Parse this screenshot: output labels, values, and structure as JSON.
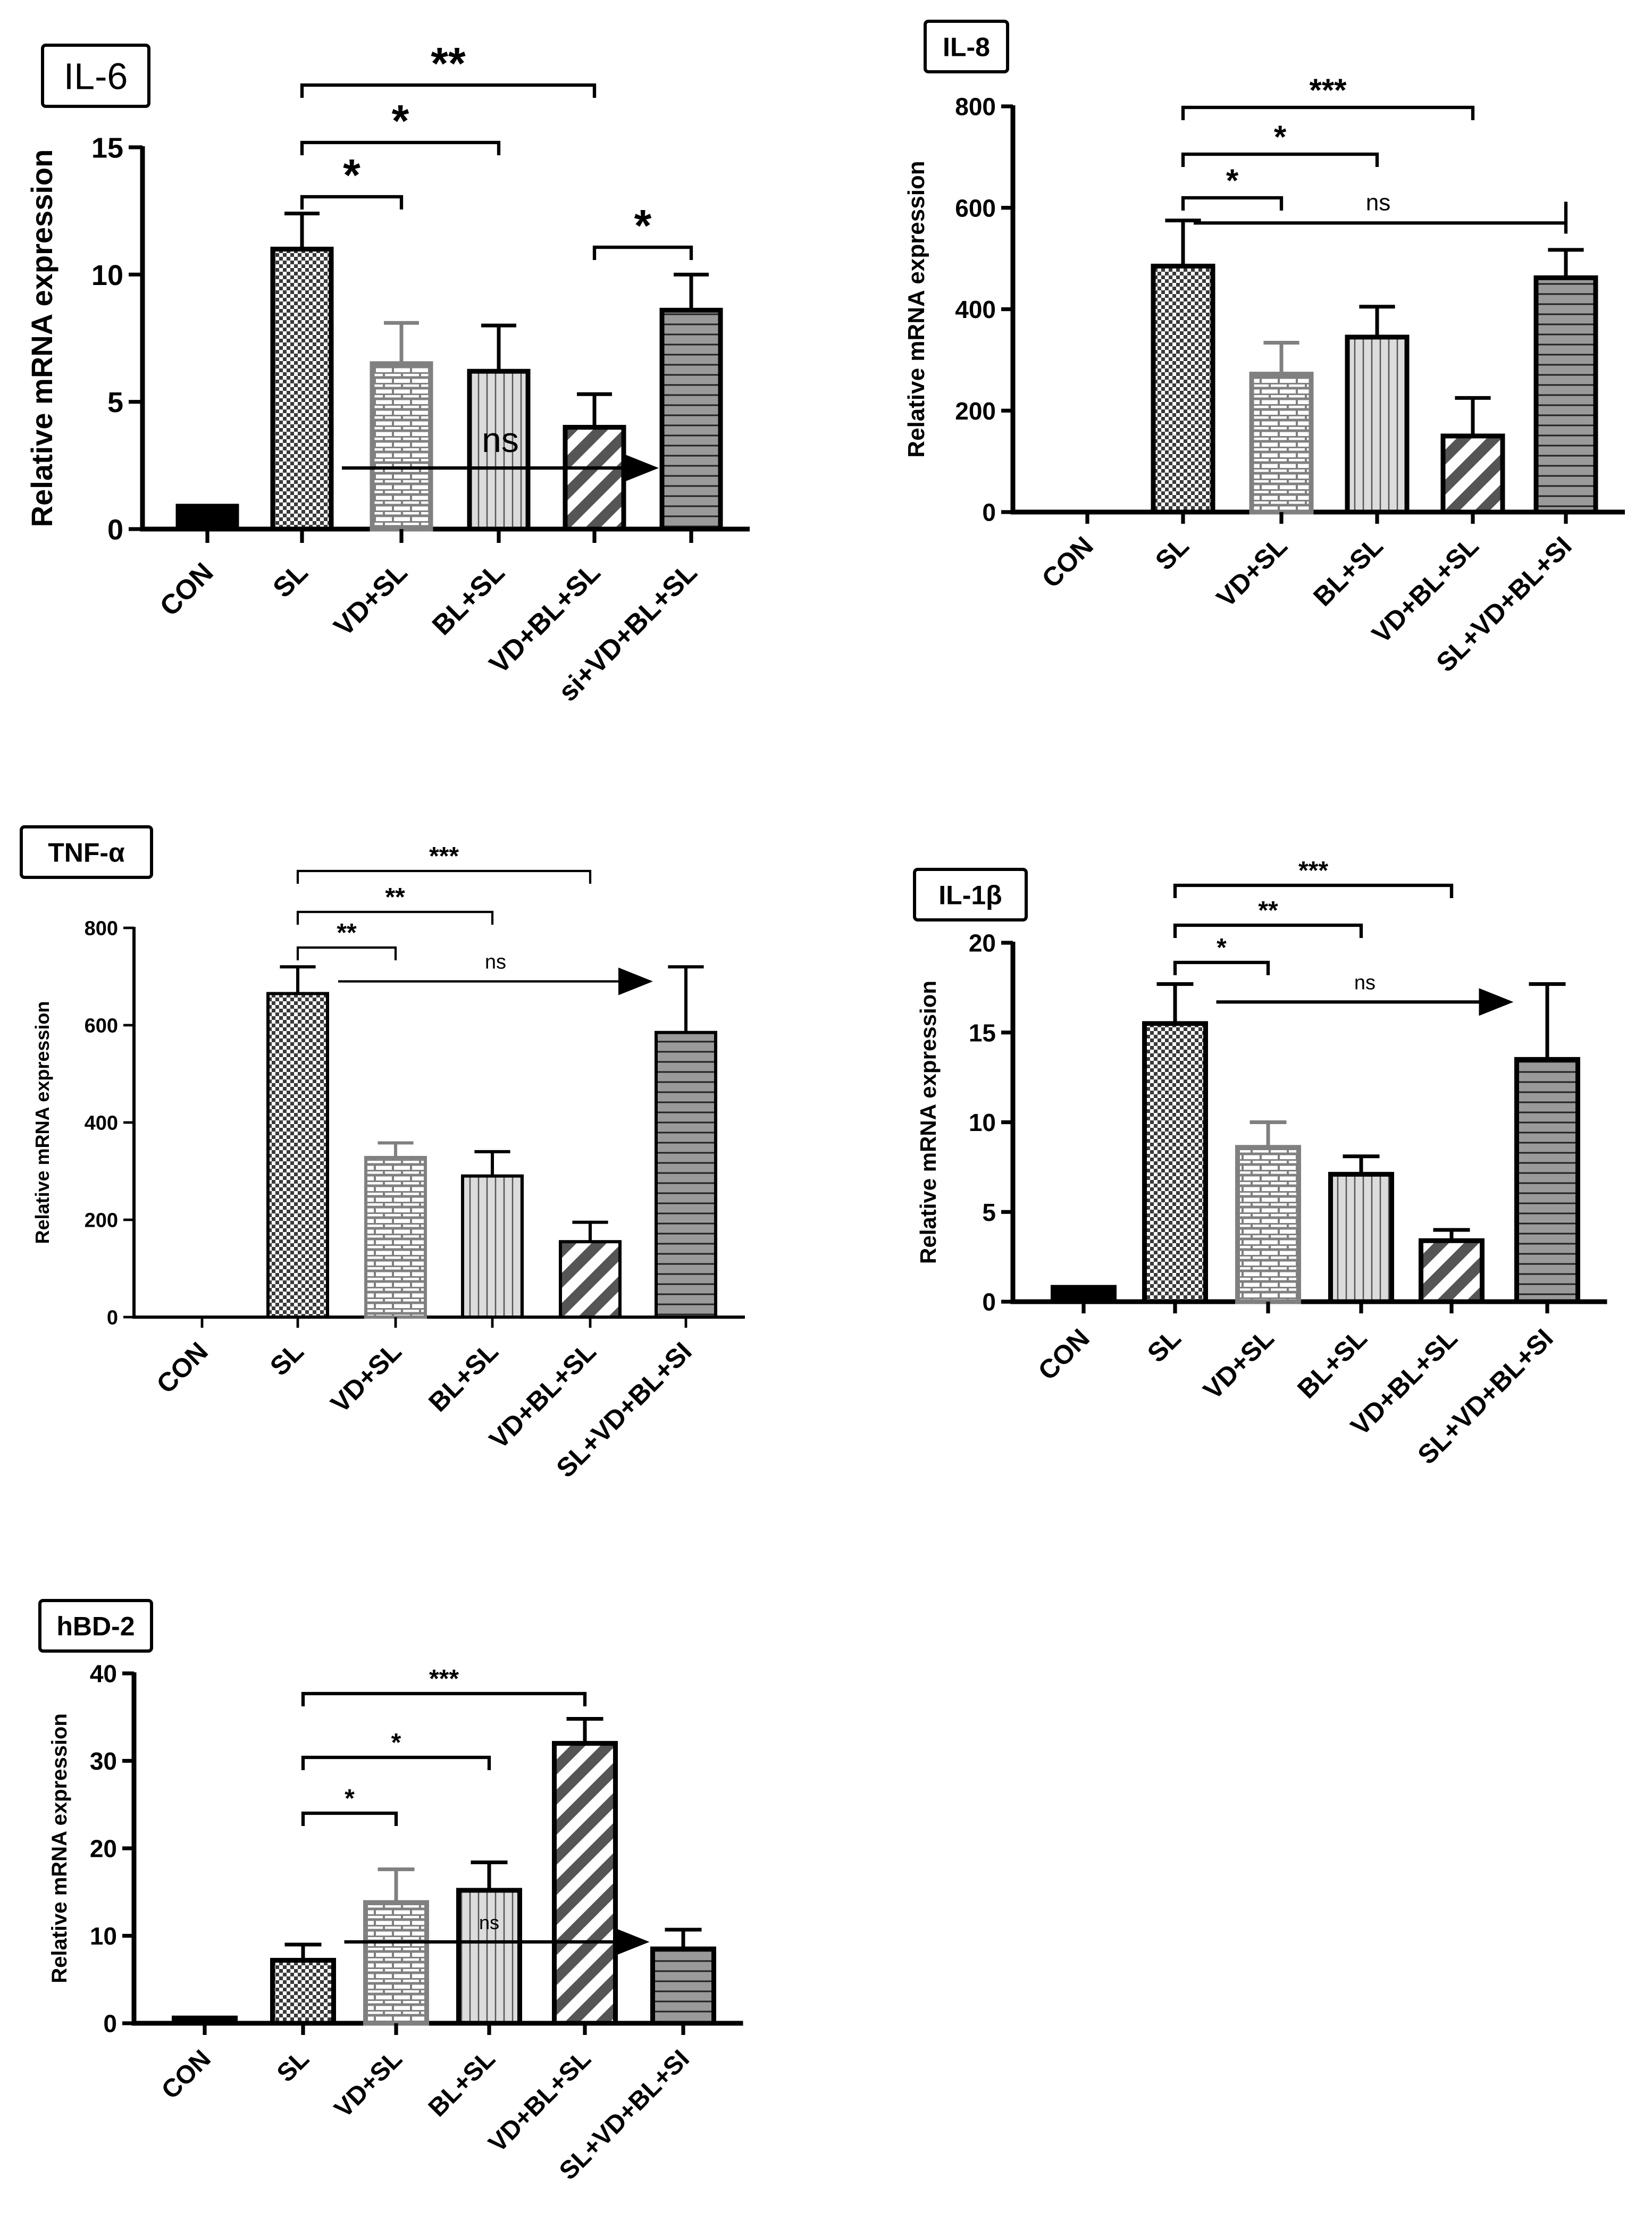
{
  "chart_data": [
    {
      "id": "il6",
      "type": "bar",
      "title": "IL-6",
      "title_bold": false,
      "ylabel": "Relative mRNA expression",
      "ylim": [
        0,
        15
      ],
      "yticks": [
        0,
        5,
        10,
        15
      ],
      "categories": [
        "CON",
        "SL",
        "VD+SL",
        "BL+SL",
        "VD+BL+SL",
        "si+VD+BL+SL"
      ],
      "values": [
        0.9,
        11.0,
        6.5,
        6.2,
        4.0,
        8.6
      ],
      "errors": [
        0,
        1.4,
        1.6,
        1.8,
        1.3,
        1.4
      ],
      "comparisons": [
        {
          "from": 1,
          "to": 2,
          "label": "*"
        },
        {
          "from": 1,
          "to": 3,
          "label": "*"
        },
        {
          "from": 1,
          "to": 4,
          "label": "**"
        },
        {
          "from": 4,
          "to": 5,
          "label": "*"
        }
      ],
      "arrow": {
        "from": 1,
        "to": 5,
        "label": "ns",
        "value": 2.4
      }
    },
    {
      "id": "il8",
      "type": "bar",
      "title": "IL-8",
      "title_bold": true,
      "ylabel": "Relative mRNA expression",
      "ylim": [
        0,
        800
      ],
      "yticks": [
        0,
        200,
        400,
        600,
        800
      ],
      "categories": [
        "CON",
        "SL",
        "VD+SL",
        "BL+SL",
        "VD+BL+SL",
        "SL+VD+BL+SI"
      ],
      "values": [
        0,
        485,
        272,
        345,
        150,
        462
      ],
      "errors": [
        0,
        90,
        62,
        60,
        75,
        55
      ],
      "comparisons": [
        {
          "from": 1,
          "to": 2,
          "label": "*"
        },
        {
          "from": 1,
          "to": 3,
          "label": "*"
        },
        {
          "from": 1,
          "to": 4,
          "label": "***"
        }
      ],
      "arrow": {
        "from": 1,
        "to": 5,
        "label": "ns",
        "value": 570,
        "head": false
      }
    },
    {
      "id": "tnf",
      "type": "bar",
      "title": "TNF-α",
      "title_bold": true,
      "ylabel": "Relative mRNA expression",
      "ylim": [
        0,
        800
      ],
      "yticks": [
        0,
        200,
        400,
        600,
        800
      ],
      "categories": [
        "CON",
        "SL",
        "VD+SL",
        "BL+SL",
        "VD+BL+SL",
        "SL+VD+BL+SI"
      ],
      "values": [
        0,
        665,
        328,
        290,
        155,
        585
      ],
      "errors": [
        0,
        55,
        30,
        50,
        40,
        135
      ],
      "comparisons": [
        {
          "from": 1,
          "to": 2,
          "label": "**"
        },
        {
          "from": 1,
          "to": 3,
          "label": "**"
        },
        {
          "from": 1,
          "to": 4,
          "label": "***"
        }
      ],
      "arrow": {
        "from": 1,
        "to": 5,
        "label": "ns",
        "value": 690
      }
    },
    {
      "id": "il1b",
      "type": "bar",
      "title": "IL-1β",
      "title_bold": true,
      "ylabel": "Relative mRNA expression",
      "ylim": [
        0,
        20
      ],
      "yticks": [
        0,
        5,
        10,
        15,
        20
      ],
      "categories": [
        "CON",
        "SL",
        "VD+SL",
        "BL+SL",
        "VD+BL+SL",
        "SL+VD+BL+SI"
      ],
      "values": [
        0.8,
        15.5,
        8.6,
        7.1,
        3.4,
        13.5
      ],
      "errors": [
        0,
        2.2,
        1.4,
        1.0,
        0.6,
        4.2
      ],
      "comparisons": [
        {
          "from": 1,
          "to": 2,
          "label": "*"
        },
        {
          "from": 1,
          "to": 3,
          "label": "**"
        },
        {
          "from": 1,
          "to": 4,
          "label": "***"
        }
      ],
      "arrow": {
        "from": 1,
        "to": 5,
        "label": "ns",
        "value": 16.7
      }
    },
    {
      "id": "hbd2",
      "type": "bar",
      "title": "hBD-2",
      "title_bold": true,
      "ylabel": "Relative mRNA expression",
      "ylim": [
        0,
        40
      ],
      "yticks": [
        0,
        10,
        20,
        30,
        40
      ],
      "categories": [
        "CON",
        "SL",
        "VD+SL",
        "BL+SL",
        "VD+BL+SL",
        "SL+VD+BL+SI"
      ],
      "values": [
        0.6,
        7.2,
        13.8,
        15.2,
        32.0,
        8.5
      ],
      "errors": [
        0,
        1.8,
        3.8,
        3.2,
        2.8,
        2.2
      ],
      "comparisons": [
        {
          "from": 1,
          "to": 2,
          "label": "*"
        },
        {
          "from": 1,
          "to": 3,
          "label": "*"
        },
        {
          "from": 1,
          "to": 4,
          "label": "***"
        }
      ],
      "arrow": {
        "from": 1,
        "to": 5,
        "label": "ns",
        "value": 9.3,
        "label_at": 3
      }
    }
  ]
}
